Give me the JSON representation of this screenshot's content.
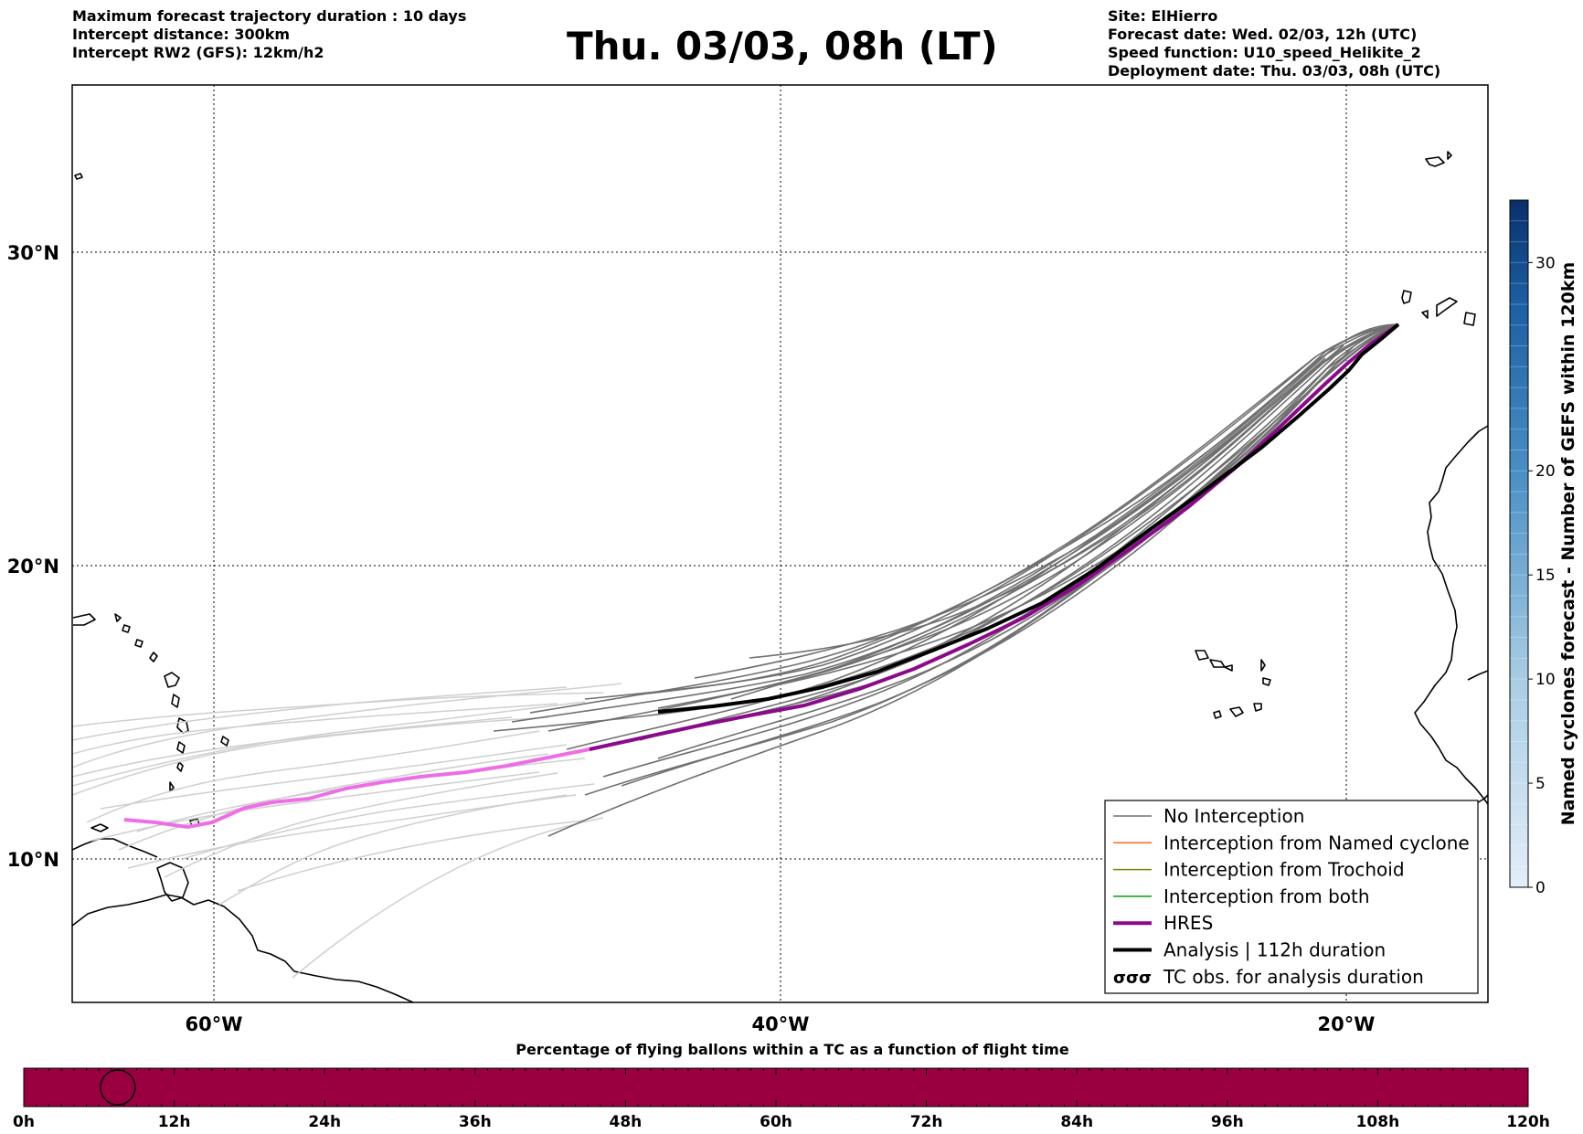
{
  "header": {
    "left": [
      "Maximum forecast trajectory duration : 10 days",
      "Intercept distance: 300km",
      "Intercept RW2 (GFS):  12km/h2"
    ],
    "title": "Thu. 03/03, 08h (LT)",
    "right": [
      "Site: ElHierro",
      "Forecast date: Wed. 02/03, 12h (UTC)",
      "Speed function: U10_speed_Helikite_2",
      "Deployment date: Thu. 03/03, 08h (UTC)"
    ]
  },
  "map": {
    "lon_labels": [
      "60°W",
      "40°W",
      "20°W"
    ],
    "lat_labels": [
      "30°N",
      "20°N",
      "10°N"
    ],
    "colors": {
      "no_interception": "#707070",
      "pre_start": "#cfcfcf",
      "hres": "#8b0a8b",
      "hres_early": "#ee6ee6",
      "analysis": "#000000",
      "named_cyclone": "#ff6a1a",
      "trochoid": "#808000",
      "both": "#00a000"
    }
  },
  "legend": {
    "items": [
      {
        "label": "No Interception",
        "color": "#707070",
        "style": "thin"
      },
      {
        "label": "Interception from Named cyclone",
        "color": "#ff6a1a",
        "style": "thin"
      },
      {
        "label": "Interception from Trochoid",
        "color": "#808000",
        "style": "thin"
      },
      {
        "label": "Interception from both",
        "color": "#00a000",
        "style": "thin"
      },
      {
        "label": "HRES",
        "color": "#8b0a8b",
        "style": "thick"
      },
      {
        "label": "Analysis | 112h duration",
        "color": "#000000",
        "style": "thick"
      },
      {
        "label": "TC obs. for analysis duration",
        "color": "#000000",
        "style": "tc-symbol"
      }
    ]
  },
  "colorbar": {
    "label": "Named cyclones forecast - Number of GEFS within 120km",
    "ticks": [
      "0",
      "5",
      "10",
      "15",
      "20",
      "30"
    ],
    "tick_values": [
      0,
      5,
      10,
      15,
      20,
      30
    ],
    "max": 33,
    "color_low": "#dbe9f6",
    "color_high": "#08306b"
  },
  "timeline": {
    "title": "Percentage of flying ballons within a TC as a function of flight time",
    "labels": [
      "0h",
      "12h",
      "24h",
      "36h",
      "48h",
      "60h",
      "72h",
      "84h",
      "96h",
      "108h",
      "120h"
    ],
    "bar_color": "#9a0040",
    "marker_hour": 7.5,
    "max_hours": 120
  }
}
